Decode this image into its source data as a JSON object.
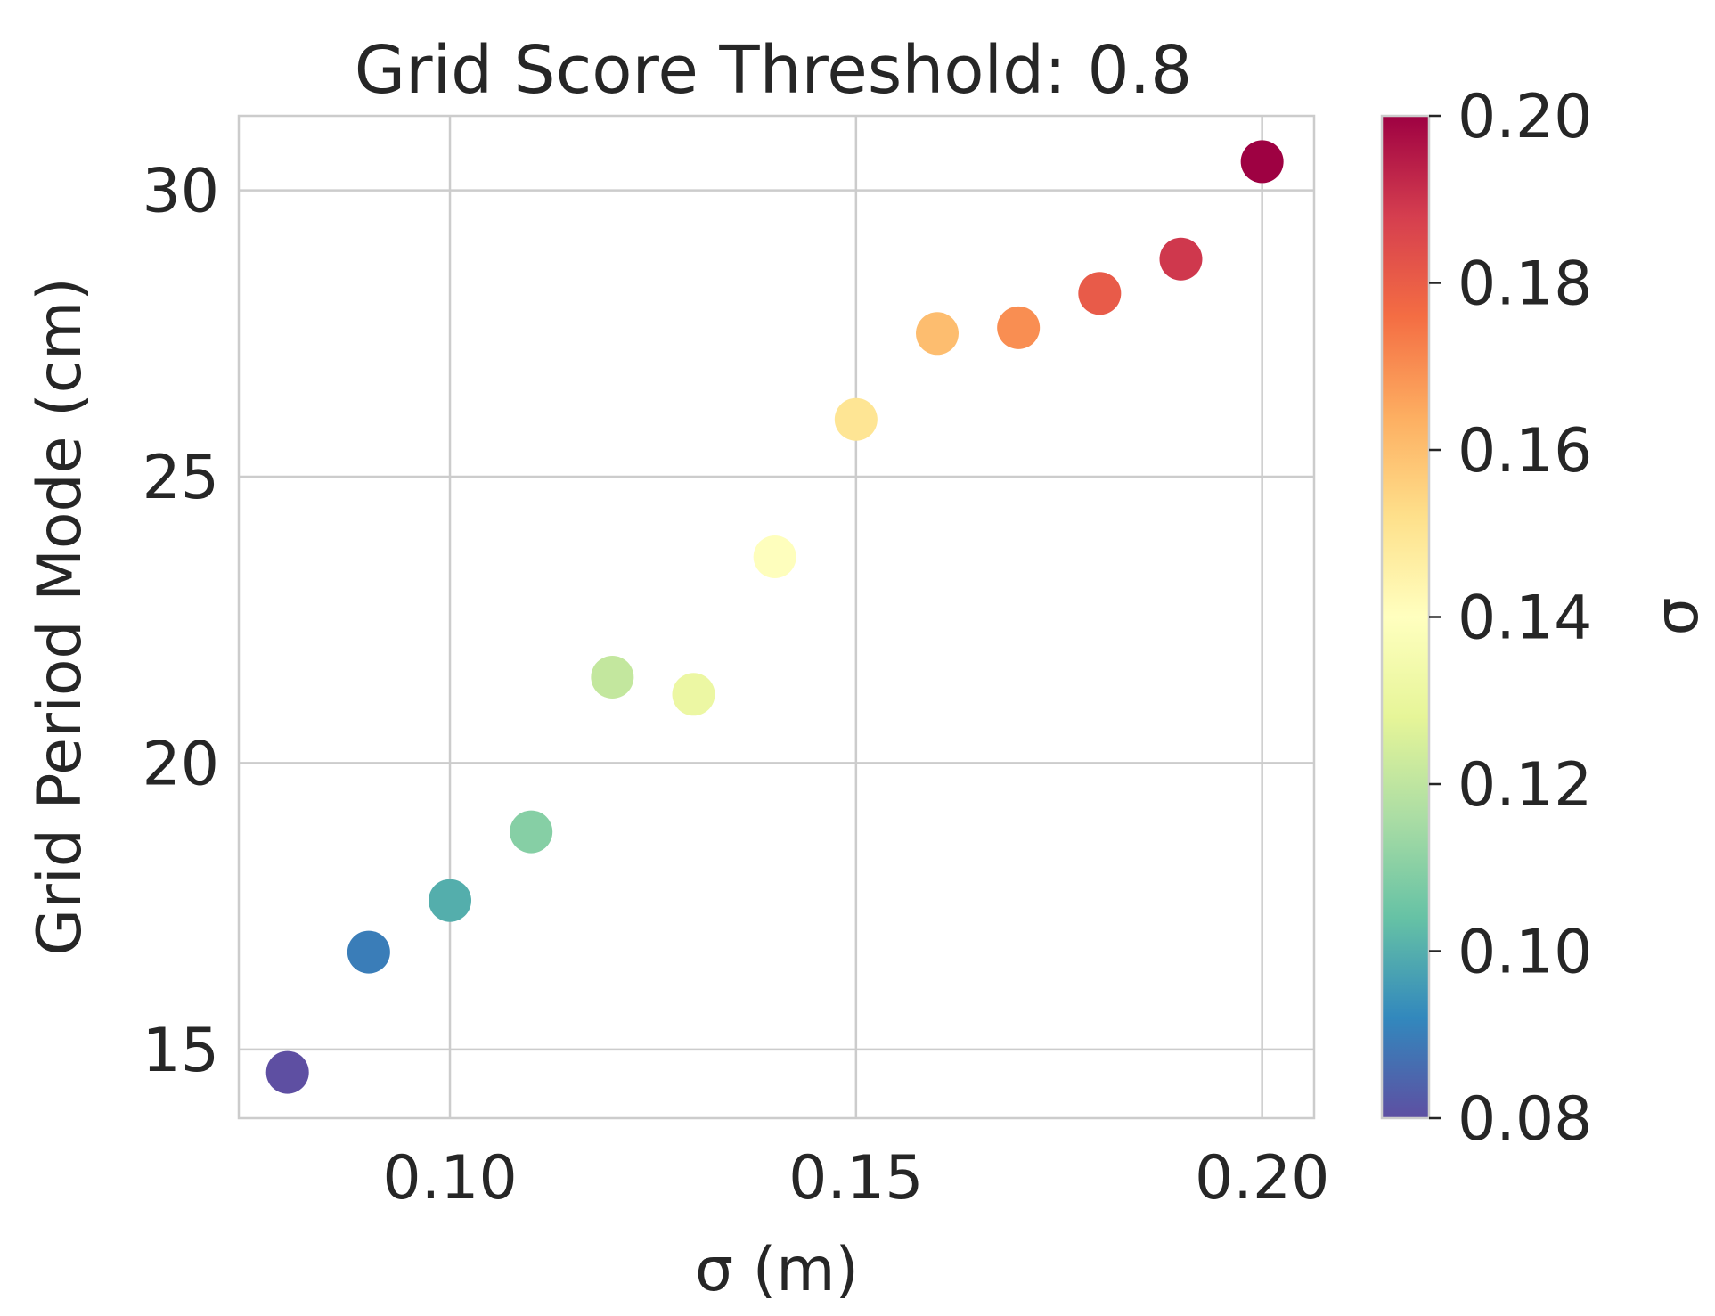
{
  "chart_data": {
    "type": "scatter",
    "title": "Grid Score Threshold: 0.8",
    "xlabel": "σ (m)",
    "ylabel": "Grid Period Mode (cm)",
    "xlim": [
      0.074,
      0.2064
    ],
    "ylim": [
      13.8,
      31.3
    ],
    "xticks": [
      0.1,
      0.15,
      0.2
    ],
    "xtick_labels": [
      "0.10",
      "0.15",
      "0.20"
    ],
    "yticks": [
      15,
      20,
      25,
      30
    ],
    "ytick_labels": [
      "15",
      "20",
      "25",
      "30"
    ],
    "grid": true,
    "colormap": "Spectral",
    "colorbar": {
      "label": "σ",
      "range": [
        0.08,
        0.2
      ],
      "ticks": [
        0.08,
        0.1,
        0.12,
        0.14,
        0.16,
        0.18,
        0.2
      ],
      "tick_labels": [
        "0.08",
        "0.10",
        "0.12",
        "0.14",
        "0.16",
        "0.18",
        "0.20"
      ],
      "gradient_colors": [
        "#5e4fa2",
        "#3288bd",
        "#66c2a5",
        "#abdda4",
        "#e6f598",
        "#ffffbf",
        "#fee08b",
        "#fdae61",
        "#f46d43",
        "#d53e4f",
        "#9e0142"
      ]
    },
    "points": [
      {
        "x": 0.08,
        "y": 14.6,
        "color": "#5e4fa2"
      },
      {
        "x": 0.09,
        "y": 16.7,
        "color": "#3a7db8"
      },
      {
        "x": 0.1,
        "y": 17.6,
        "color": "#54aeac"
      },
      {
        "x": 0.11,
        "y": 18.8,
        "color": "#86cfa5"
      },
      {
        "x": 0.12,
        "y": 21.5,
        "color": "#c3e79e"
      },
      {
        "x": 0.13,
        "y": 21.2,
        "color": "#ecf7a3"
      },
      {
        "x": 0.14,
        "y": 23.6,
        "color": "#fefebd"
      },
      {
        "x": 0.15,
        "y": 26.0,
        "color": "#fee594"
      },
      {
        "x": 0.16,
        "y": 27.5,
        "color": "#fdbd6f"
      },
      {
        "x": 0.17,
        "y": 27.6,
        "color": "#f98e52"
      },
      {
        "x": 0.18,
        "y": 28.2,
        "color": "#e85b49"
      },
      {
        "x": 0.19,
        "y": 28.8,
        "color": "#cf384d"
      },
      {
        "x": 0.2,
        "y": 30.5,
        "color": "#9e0142"
      }
    ]
  }
}
